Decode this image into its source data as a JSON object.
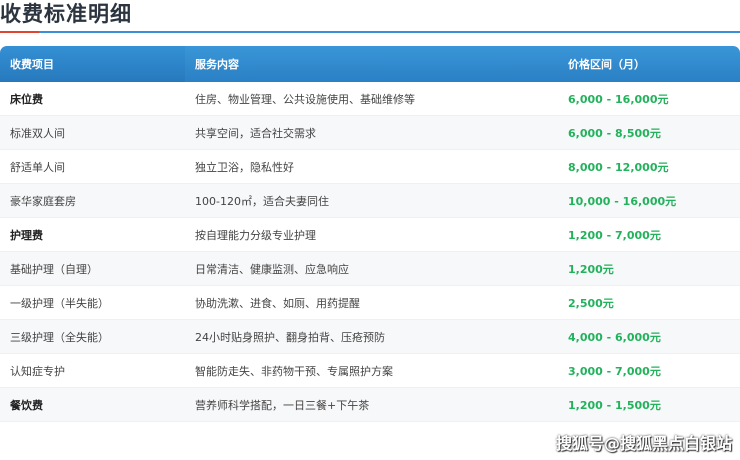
{
  "title": "收费标准明细",
  "colors": {
    "accent": "#3a8fd6",
    "marker": "#e0452f",
    "price": "#22b25b"
  },
  "table": {
    "headers": [
      "收费项目",
      "服务内容",
      "价格区间（月）"
    ],
    "rows": [
      {
        "item": "床位费",
        "content": "住房、物业管理、公共设施使用、基础维修等",
        "price": "6,000 - 16,000元",
        "category": true
      },
      {
        "item": "标准双人间",
        "content": "共享空间，适合社交需求",
        "price": "6,000 - 8,500元",
        "category": false
      },
      {
        "item": "舒适单人间",
        "content": "独立卫浴，隐私性好",
        "price": "8,000 - 12,000元",
        "category": false
      },
      {
        "item": "豪华家庭套房",
        "content": "100-120㎡，适合夫妻同住",
        "price": "10,000 - 16,000元",
        "category": false
      },
      {
        "item": "护理费",
        "content": "按自理能力分级专业护理",
        "price": "1,200 - 7,000元",
        "category": true
      },
      {
        "item": "基础护理（自理）",
        "content": "日常清洁、健康监测、应急响应",
        "price": "1,200元",
        "category": false
      },
      {
        "item": "一级护理（半失能）",
        "content": "协助洗漱、进食、如厕、用药提醒",
        "price": "2,500元",
        "category": false
      },
      {
        "item": "三级护理（全失能）",
        "content": "24小时贴身照护、翻身拍背、压疮预防",
        "price": "4,000 - 6,000元",
        "category": false
      },
      {
        "item": "认知症专护",
        "content": "智能防走失、非药物干预、专属照护方案",
        "price": "3,000 - 7,000元",
        "category": false
      },
      {
        "item": "餐饮费",
        "content": "营养师科学搭配，一日三餐+下午茶",
        "price": "1,200 - 1,500元",
        "category": true
      }
    ]
  },
  "watermark": "搜狐号@搜狐黑点白银站"
}
